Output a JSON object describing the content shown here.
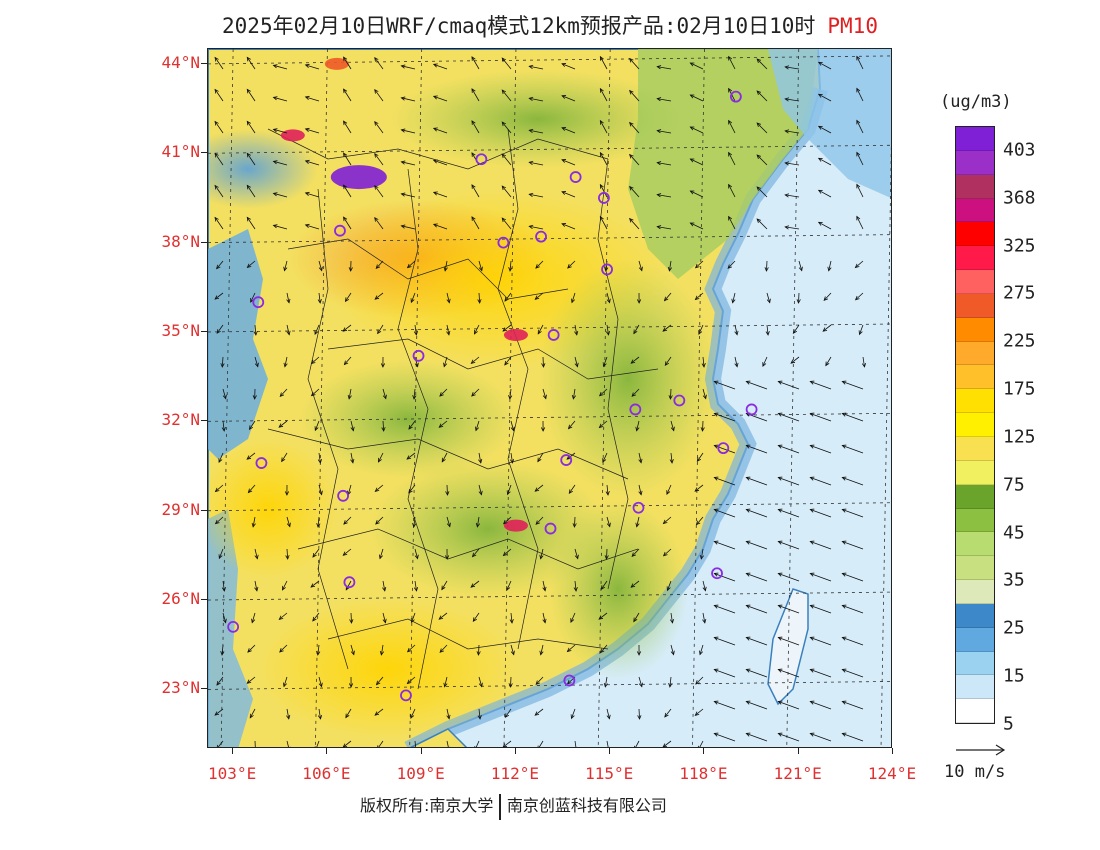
{
  "title": {
    "main": "2025年02月10日WRF/cmaq模式12km预报产品:02月10日10时",
    "product": "PM10",
    "product_color": "#e02020"
  },
  "axes": {
    "lat_labels": [
      "44°N",
      "41°N",
      "38°N",
      "35°N",
      "32°N",
      "29°N",
      "26°N",
      "23°N"
    ],
    "lon_labels": [
      "103°E",
      "106°E",
      "109°E",
      "112°E",
      "115°E",
      "118°E",
      "121°E",
      "124°E"
    ],
    "label_color": "#e03030"
  },
  "legend": {
    "unit": "(ug/m3)",
    "labels": [
      "403",
      "368",
      "325",
      "275",
      "225",
      "175",
      "125",
      "75",
      "45",
      "35",
      "25",
      "15",
      "5"
    ],
    "colors": [
      "#7f1fd6",
      "#9b30c8",
      "#b03060",
      "#cc1080",
      "#ff0000",
      "#ff1a4a",
      "#ff6060",
      "#f05a28",
      "#ff8c00",
      "#ffaa2a",
      "#ffc02a",
      "#ffe000",
      "#fff000",
      "#f8e050",
      "#f0f060",
      "#6aa42a",
      "#8cc040",
      "#b8dc70",
      "#c8e080",
      "#dde9b8",
      "#3c88c8",
      "#60a8e0",
      "#9ad2f0",
      "#cce8f8",
      "#ffffff"
    ]
  },
  "wind_reference": {
    "label": "10 m/s"
  },
  "copyright": {
    "left": "版权所有:南京大学",
    "right": "南京创蓝科技有限公司"
  },
  "map": {
    "sea_color": "#d6ecf8",
    "coast_color": "#4a92cc",
    "land_base_color": "#f4e060",
    "stations": [
      {
        "lon": 119.0,
        "lat": 42.9
      },
      {
        "lon": 110.9,
        "lat": 40.8
      },
      {
        "lon": 113.9,
        "lat": 40.2
      },
      {
        "lon": 114.8,
        "lat": 39.5
      },
      {
        "lon": 106.4,
        "lat": 38.4
      },
      {
        "lon": 111.6,
        "lat": 38.0
      },
      {
        "lon": 112.8,
        "lat": 38.2
      },
      {
        "lon": 114.9,
        "lat": 37.1
      },
      {
        "lon": 103.8,
        "lat": 36.0
      },
      {
        "lon": 113.2,
        "lat": 34.9
      },
      {
        "lon": 108.9,
        "lat": 34.2
      },
      {
        "lon": 115.8,
        "lat": 32.4
      },
      {
        "lon": 117.2,
        "lat": 32.7
      },
      {
        "lon": 119.5,
        "lat": 32.4
      },
      {
        "lon": 118.6,
        "lat": 31.1
      },
      {
        "lon": 113.6,
        "lat": 30.7
      },
      {
        "lon": 103.9,
        "lat": 30.6
      },
      {
        "lon": 106.5,
        "lat": 29.5
      },
      {
        "lon": 115.9,
        "lat": 29.1
      },
      {
        "lon": 113.1,
        "lat": 28.4
      },
      {
        "lon": 106.7,
        "lat": 26.6
      },
      {
        "lon": 118.4,
        "lat": 26.9
      },
      {
        "lon": 103.0,
        "lat": 25.1
      },
      {
        "lon": 108.5,
        "lat": 22.8
      },
      {
        "lon": 113.7,
        "lat": 23.3
      }
    ],
    "hotspots": [
      {
        "lon": 107.0,
        "lat": 40.2,
        "level": 403
      },
      {
        "lon": 104.9,
        "lat": 41.6,
        "level": 275
      },
      {
        "lon": 112.0,
        "lat": 34.9,
        "level": 275
      },
      {
        "lon": 112.0,
        "lat": 28.5,
        "level": 275
      },
      {
        "lon": 106.3,
        "lat": 44.0,
        "level": 225
      }
    ]
  }
}
